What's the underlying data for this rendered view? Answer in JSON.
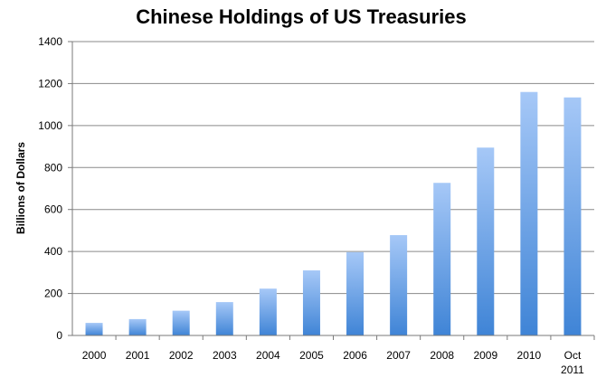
{
  "chart_data": {
    "type": "bar",
    "title": "Chinese Holdings of US Treasuries",
    "xlabel": "",
    "ylabel": "Billions of Dollars",
    "ylim": [
      0,
      1400
    ],
    "yticks": [
      0,
      200,
      400,
      600,
      800,
      1000,
      1200,
      1400
    ],
    "grid": true,
    "legend": "none",
    "categories": [
      "2000",
      "2001",
      "2002",
      "2003",
      "2004",
      "2005",
      "2006",
      "2007",
      "2008",
      "2009",
      "2010",
      "Oct 2011"
    ],
    "values": [
      60,
      78,
      118,
      159,
      223,
      310,
      397,
      478,
      727,
      895,
      1160,
      1134
    ],
    "bar_color_top": "#a6c8f7",
    "bar_color_bottom": "#3f84d6"
  }
}
